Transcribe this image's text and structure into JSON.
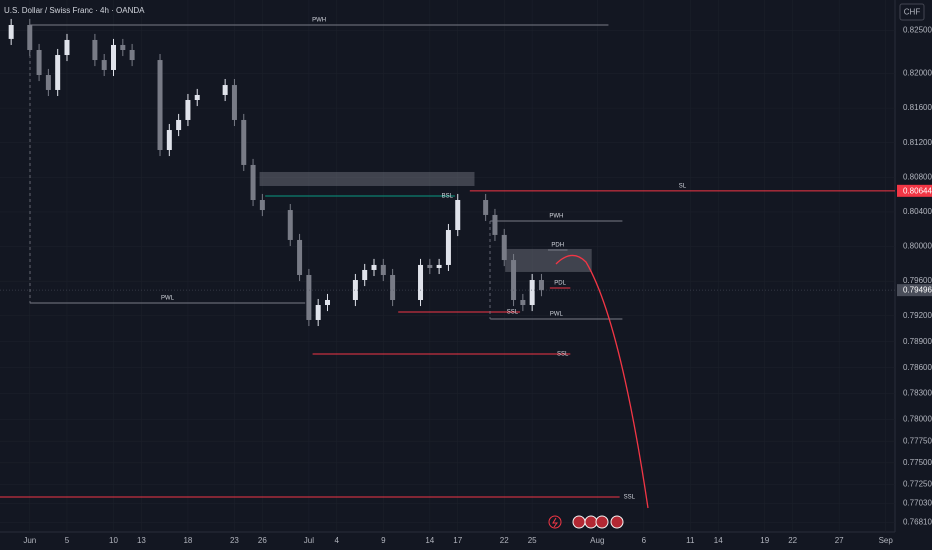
{
  "chart_data": {
    "type": "candlestick",
    "title": "U.S. Dollar / Swiss Franc · 4h · OANDA",
    "currency": "CHF",
    "up_color": "#e0e3eb",
    "down_color": "#787b86",
    "xlim": [
      -3.2,
      93
    ],
    "ylim": [
      0.767,
      0.8285
    ],
    "x": [
      -2,
      0,
      1,
      2,
      3,
      4,
      7,
      8,
      9,
      10,
      11,
      14,
      15,
      16,
      17,
      18,
      21,
      22,
      23,
      24,
      25,
      28,
      29,
      30,
      31,
      32,
      35,
      36,
      37,
      38,
      39,
      42,
      43,
      44,
      45,
      46,
      49,
      50,
      51,
      52,
      53,
      54,
      55
    ],
    "open": [
      0.824,
      0.82561,
      0.82272,
      0.81983,
      0.8181,
      0.82214,
      0.82388,
      0.82156,
      0.82041,
      0.8233,
      0.82272,
      0.82156,
      0.81116,
      0.81347,
      0.81463,
      0.81694,
      0.81752,
      0.81867,
      0.81463,
      0.80943,
      0.80538,
      0.80422,
      0.80076,
      0.79671,
      0.79151,
      0.79324,
      0.79382,
      0.79613,
      0.79729,
      0.79787,
      0.79671,
      0.79382,
      0.79787,
      0.79752,
      0.79787,
      0.80191,
      0.80538,
      0.80365,
      0.80134,
      0.79844,
      0.79382,
      0.79324,
      0.79613
    ],
    "high": [
      0.82631,
      0.82631,
      0.82342,
      0.82053,
      0.82284,
      0.82458,
      0.82458,
      0.82226,
      0.824,
      0.824,
      0.82342,
      0.82226,
      0.81417,
      0.81533,
      0.81764,
      0.81822,
      0.81937,
      0.81937,
      0.81533,
      0.81013,
      0.80608,
      0.80492,
      0.80146,
      0.79741,
      0.79394,
      0.79452,
      0.79683,
      0.79799,
      0.79857,
      0.79857,
      0.79741,
      0.79857,
      0.79857,
      0.79857,
      0.80261,
      0.80608,
      0.80608,
      0.80435,
      0.80204,
      0.79914,
      0.79452,
      0.79683,
      0.79683
    ],
    "low": [
      0.8233,
      0.82202,
      0.81913,
      0.8174,
      0.8174,
      0.82144,
      0.82086,
      0.81971,
      0.81971,
      0.82202,
      0.82086,
      0.81046,
      0.81046,
      0.81277,
      0.81393,
      0.81624,
      0.81682,
      0.81393,
      0.80873,
      0.80468,
      0.80352,
      0.80006,
      0.79601,
      0.79081,
      0.79081,
      0.79254,
      0.79312,
      0.79543,
      0.79659,
      0.79601,
      0.79312,
      0.79312,
      0.79682,
      0.79682,
      0.79717,
      0.80121,
      0.80295,
      0.80064,
      0.79774,
      0.79312,
      0.79254,
      0.79254,
      0.79426
    ],
    "close": [
      0.82561,
      0.82272,
      0.81983,
      0.8181,
      0.82214,
      0.82388,
      0.82156,
      0.82041,
      0.8233,
      0.82272,
      0.82156,
      0.81116,
      0.81347,
      0.81463,
      0.81694,
      0.81752,
      0.81867,
      0.81463,
      0.80943,
      0.80538,
      0.80422,
      0.80076,
      0.79671,
      0.79151,
      0.79324,
      0.79382,
      0.79613,
      0.79729,
      0.79787,
      0.79671,
      0.79382,
      0.79787,
      0.79752,
      0.79787,
      0.80191,
      0.80538,
      0.80365,
      0.80134,
      0.79844,
      0.79382,
      0.79324,
      0.79613,
      0.79496
    ],
    "zones": [
      {
        "x": [
          24.7,
          47.8
        ],
        "y": [
          0.807,
          0.80862
        ]
      },
      {
        "x": [
          51.1,
          60.4
        ],
        "y": [
          0.79706,
          0.79972
        ]
      }
    ],
    "levels": [
      {
        "label": "PWH",
        "value": 0.82561,
        "x": [
          0,
          62.2
        ],
        "color": "#787b86",
        "anchor": "middle"
      },
      {
        "label": "PWL",
        "value": 0.79347,
        "x": [
          0,
          29.6
        ],
        "color": "#787b86",
        "anchor": "middle"
      },
      {
        "label": "SL",
        "value": 0.80644,
        "x": [
          47.3,
          93
        ],
        "color": "#f23645",
        "anchor": "middle"
      },
      {
        "label": "BSL",
        "value": 0.80584,
        "x": [
          25.3,
          45.7
        ],
        "color": "#089981",
        "anchor": "end"
      },
      {
        "label": "PWH",
        "value": 0.80295,
        "x": [
          49.5,
          63.7
        ],
        "color": "#787b86",
        "anchor": "middle"
      },
      {
        "label": "PDH",
        "value": 0.7996,
        "x": [
          55.7,
          57.8
        ],
        "color": "#787b86",
        "anchor": "middle"
      },
      {
        "label": "PDL",
        "value": 0.79521,
        "x": [
          55.9,
          58.1
        ],
        "color": "#f23645",
        "anchor": "middle"
      },
      {
        "label": "SSL",
        "value": 0.79243,
        "x": [
          39.6,
          52.7
        ],
        "color": "#f23645",
        "anchor": "end"
      },
      {
        "label": "PWL",
        "value": 0.79162,
        "x": [
          49.5,
          63.7
        ],
        "color": "#787b86",
        "anchor": "middle"
      },
      {
        "label": "SSL",
        "value": 0.78758,
        "x": [
          30.4,
          58.1
        ],
        "color": "#f23645",
        "anchor": "end"
      },
      {
        "label": "SSL",
        "value": 0.77105,
        "x": [
          -3.2,
          63.4
        ],
        "color": "#f23645",
        "anchor": "after"
      }
    ],
    "price_tags": [
      {
        "value": 0.80644,
        "color": "#f23645"
      },
      {
        "value": 0.79496,
        "color": "#4a4e5a"
      }
    ],
    "yticks": [
      {
        "value": 0.825,
        "label": "0.82500"
      },
      {
        "value": 0.82,
        "label": "0.82000"
      },
      {
        "value": 0.816,
        "label": "0.81600"
      },
      {
        "value": 0.812,
        "label": "0.81200"
      },
      {
        "value": 0.808,
        "label": "0.80800"
      },
      {
        "value": 0.804,
        "label": "0.80400"
      },
      {
        "value": 0.8,
        "label": "0.80000"
      },
      {
        "value": 0.796,
        "label": "0.79600"
      },
      {
        "value": 0.792,
        "label": "0.79200"
      },
      {
        "value": 0.789,
        "label": "0.78900"
      },
      {
        "value": 0.786,
        "label": "0.78600"
      },
      {
        "value": 0.783,
        "label": "0.78300"
      },
      {
        "value": 0.78,
        "label": "0.78000"
      },
      {
        "value": 0.7775,
        "label": "0.77750"
      },
      {
        "value": 0.775,
        "label": "0.77500"
      },
      {
        "value": 0.7725,
        "label": "0.77250"
      },
      {
        "value": 0.7703,
        "label": "0.77030"
      },
      {
        "value": 0.7681,
        "label": "0.76810"
      }
    ],
    "xticks": [
      {
        "value": 0,
        "label": "Jun"
      },
      {
        "value": 4,
        "label": "5"
      },
      {
        "value": 9,
        "label": "10"
      },
      {
        "value": 12,
        "label": "13"
      },
      {
        "value": 17,
        "label": "18"
      },
      {
        "value": 22,
        "label": "23"
      },
      {
        "value": 25,
        "label": "26"
      },
      {
        "value": 30,
        "label": "Jul"
      },
      {
        "value": 33,
        "label": "4"
      },
      {
        "value": 38,
        "label": "9"
      },
      {
        "value": 43,
        "label": "14"
      },
      {
        "value": 46,
        "label": "17"
      },
      {
        "value": 51,
        "label": "22"
      },
      {
        "value": 54,
        "label": "25"
      },
      {
        "value": 61,
        "label": "Aug"
      },
      {
        "value": 66,
        "label": "6"
      },
      {
        "value": 71,
        "label": "11"
      },
      {
        "value": 74,
        "label": "14"
      },
      {
        "value": 79,
        "label": "19"
      },
      {
        "value": 82,
        "label": "22"
      },
      {
        "value": 87,
        "label": "27"
      },
      {
        "value": 92,
        "label": "Sep"
      }
    ]
  }
}
